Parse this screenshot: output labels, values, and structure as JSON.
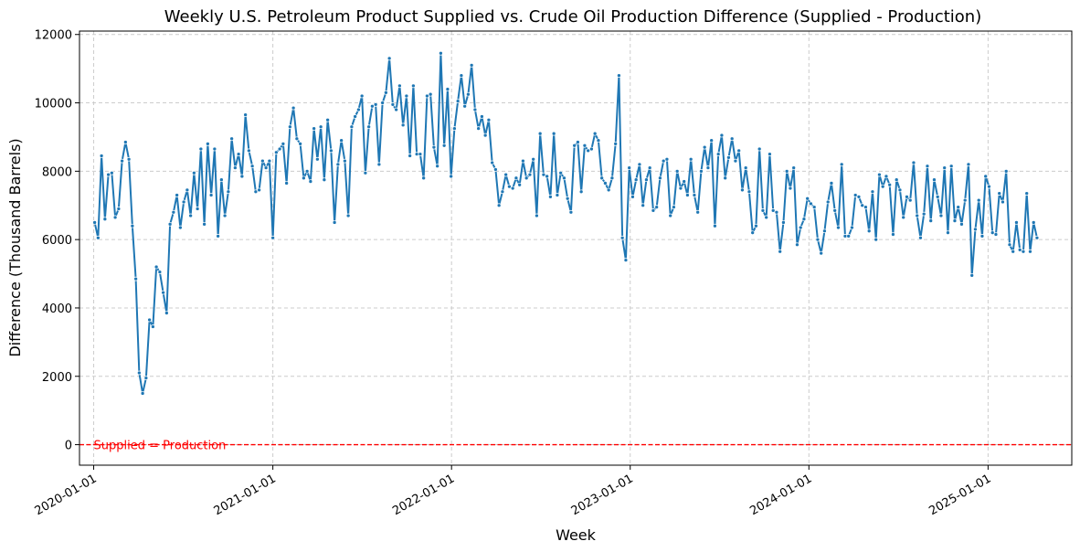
{
  "chart_data": {
    "type": "line",
    "title": "Weekly U.S. Petroleum Product Supplied vs. Crude Oil Production Difference (Supplied - Production)",
    "xlabel": "Week",
    "ylabel": "Difference (Thousand Barrels)",
    "x_range": [
      "2019-12-03",
      "2025-06-21"
    ],
    "ylim": [
      -600,
      12100
    ],
    "yticks": [
      0,
      2000,
      4000,
      6000,
      8000,
      10000,
      12000
    ],
    "xticks": [
      "2020-01-01",
      "2021-01-01",
      "2022-01-01",
      "2023-01-01",
      "2024-01-01",
      "2025-01-01"
    ],
    "grid": true,
    "colors": {
      "series": "#1f77b4",
      "reference": "#ff0000",
      "grid": "#cccccc"
    },
    "reference_line": {
      "y": 0,
      "label": "Supplied = Production"
    },
    "series": [
      {
        "x_start": "2020-01-03",
        "interval_days": 7,
        "values": [
          6500,
          6050,
          8450,
          6600,
          7900,
          7950,
          6650,
          6900,
          8300,
          8850,
          8350,
          6400,
          4850,
          2100,
          1500,
          1950,
          3650,
          3450,
          5200,
          5050,
          4450,
          3850,
          6450,
          6800,
          7300,
          6350,
          7100,
          7450,
          6700,
          7950,
          6900,
          8650,
          6450,
          8800,
          7300,
          8650,
          6100,
          7750,
          6700,
          7400,
          8950,
          8100,
          8500,
          7850,
          9650,
          8600,
          8150,
          7400,
          7450,
          8300,
          8100,
          8300,
          6050,
          8550,
          8650,
          8800,
          7650,
          9300,
          9850,
          8950,
          8800,
          7800,
          8000,
          7700,
          9250,
          8350,
          9300,
          7750,
          9500,
          8600,
          6500,
          8200,
          8900,
          8300,
          6700,
          9300,
          9600,
          9800,
          10200,
          7950,
          9300,
          9900,
          9950,
          8200,
          10000,
          10300,
          11300,
          9950,
          9800,
          10500,
          9350,
          10200,
          8450,
          10500,
          8500,
          8500,
          7800,
          10200,
          10250,
          8700,
          8150,
          11450,
          8750,
          10400,
          7850,
          9250,
          10050,
          10800,
          9900,
          10250,
          11100,
          9800,
          9250,
          9600,
          9050,
          9500,
          8250,
          8050,
          7000,
          7400,
          7900,
          7550,
          7500,
          7800,
          7600,
          8300,
          7800,
          7900,
          8350,
          6700,
          9100,
          7900,
          7850,
          7250,
          9100,
          7300,
          7950,
          7800,
          7200,
          6800,
          8750,
          8850,
          7400,
          8750,
          8600,
          8650,
          9100,
          8900,
          7800,
          7650,
          7450,
          7800,
          8800,
          10800,
          6050,
          5400,
          8100,
          7250,
          7750,
          8200,
          7000,
          7750,
          8100,
          6850,
          6950,
          7800,
          8300,
          8350,
          6700,
          6950,
          8000,
          7500,
          7700,
          7300,
          8350,
          7300,
          6800,
          8000,
          8700,
          8100,
          8900,
          6400,
          8500,
          9050,
          7800,
          8400,
          8950,
          8300,
          8600,
          7450,
          8100,
          7400,
          6200,
          6400,
          8650,
          6850,
          6650,
          8500,
          6850,
          6800,
          5650,
          6500,
          8000,
          7500,
          8100,
          5850,
          6350,
          6600,
          7200,
          7050,
          6950,
          6000,
          5600,
          6250,
          7100,
          7650,
          6850,
          6350,
          8200,
          6100,
          6100,
          6350,
          7300,
          7250,
          7000,
          6950,
          6250,
          7400,
          6000,
          7900,
          7550,
          7850,
          7600,
          6150,
          7750,
          7450,
          6650,
          7250,
          7150,
          8250,
          6700,
          6050,
          6750,
          8150,
          6550,
          7750,
          7250,
          6700,
          8100,
          6200,
          8150,
          6550,
          6950,
          6450,
          7150,
          8200,
          4950,
          6300,
          7150,
          6100,
          7850,
          7550,
          6200,
          6150,
          7350,
          7100,
          8000,
          5850,
          5650,
          6500,
          5700,
          5650,
          7350,
          5650,
          6500,
          6050
        ]
      }
    ]
  }
}
